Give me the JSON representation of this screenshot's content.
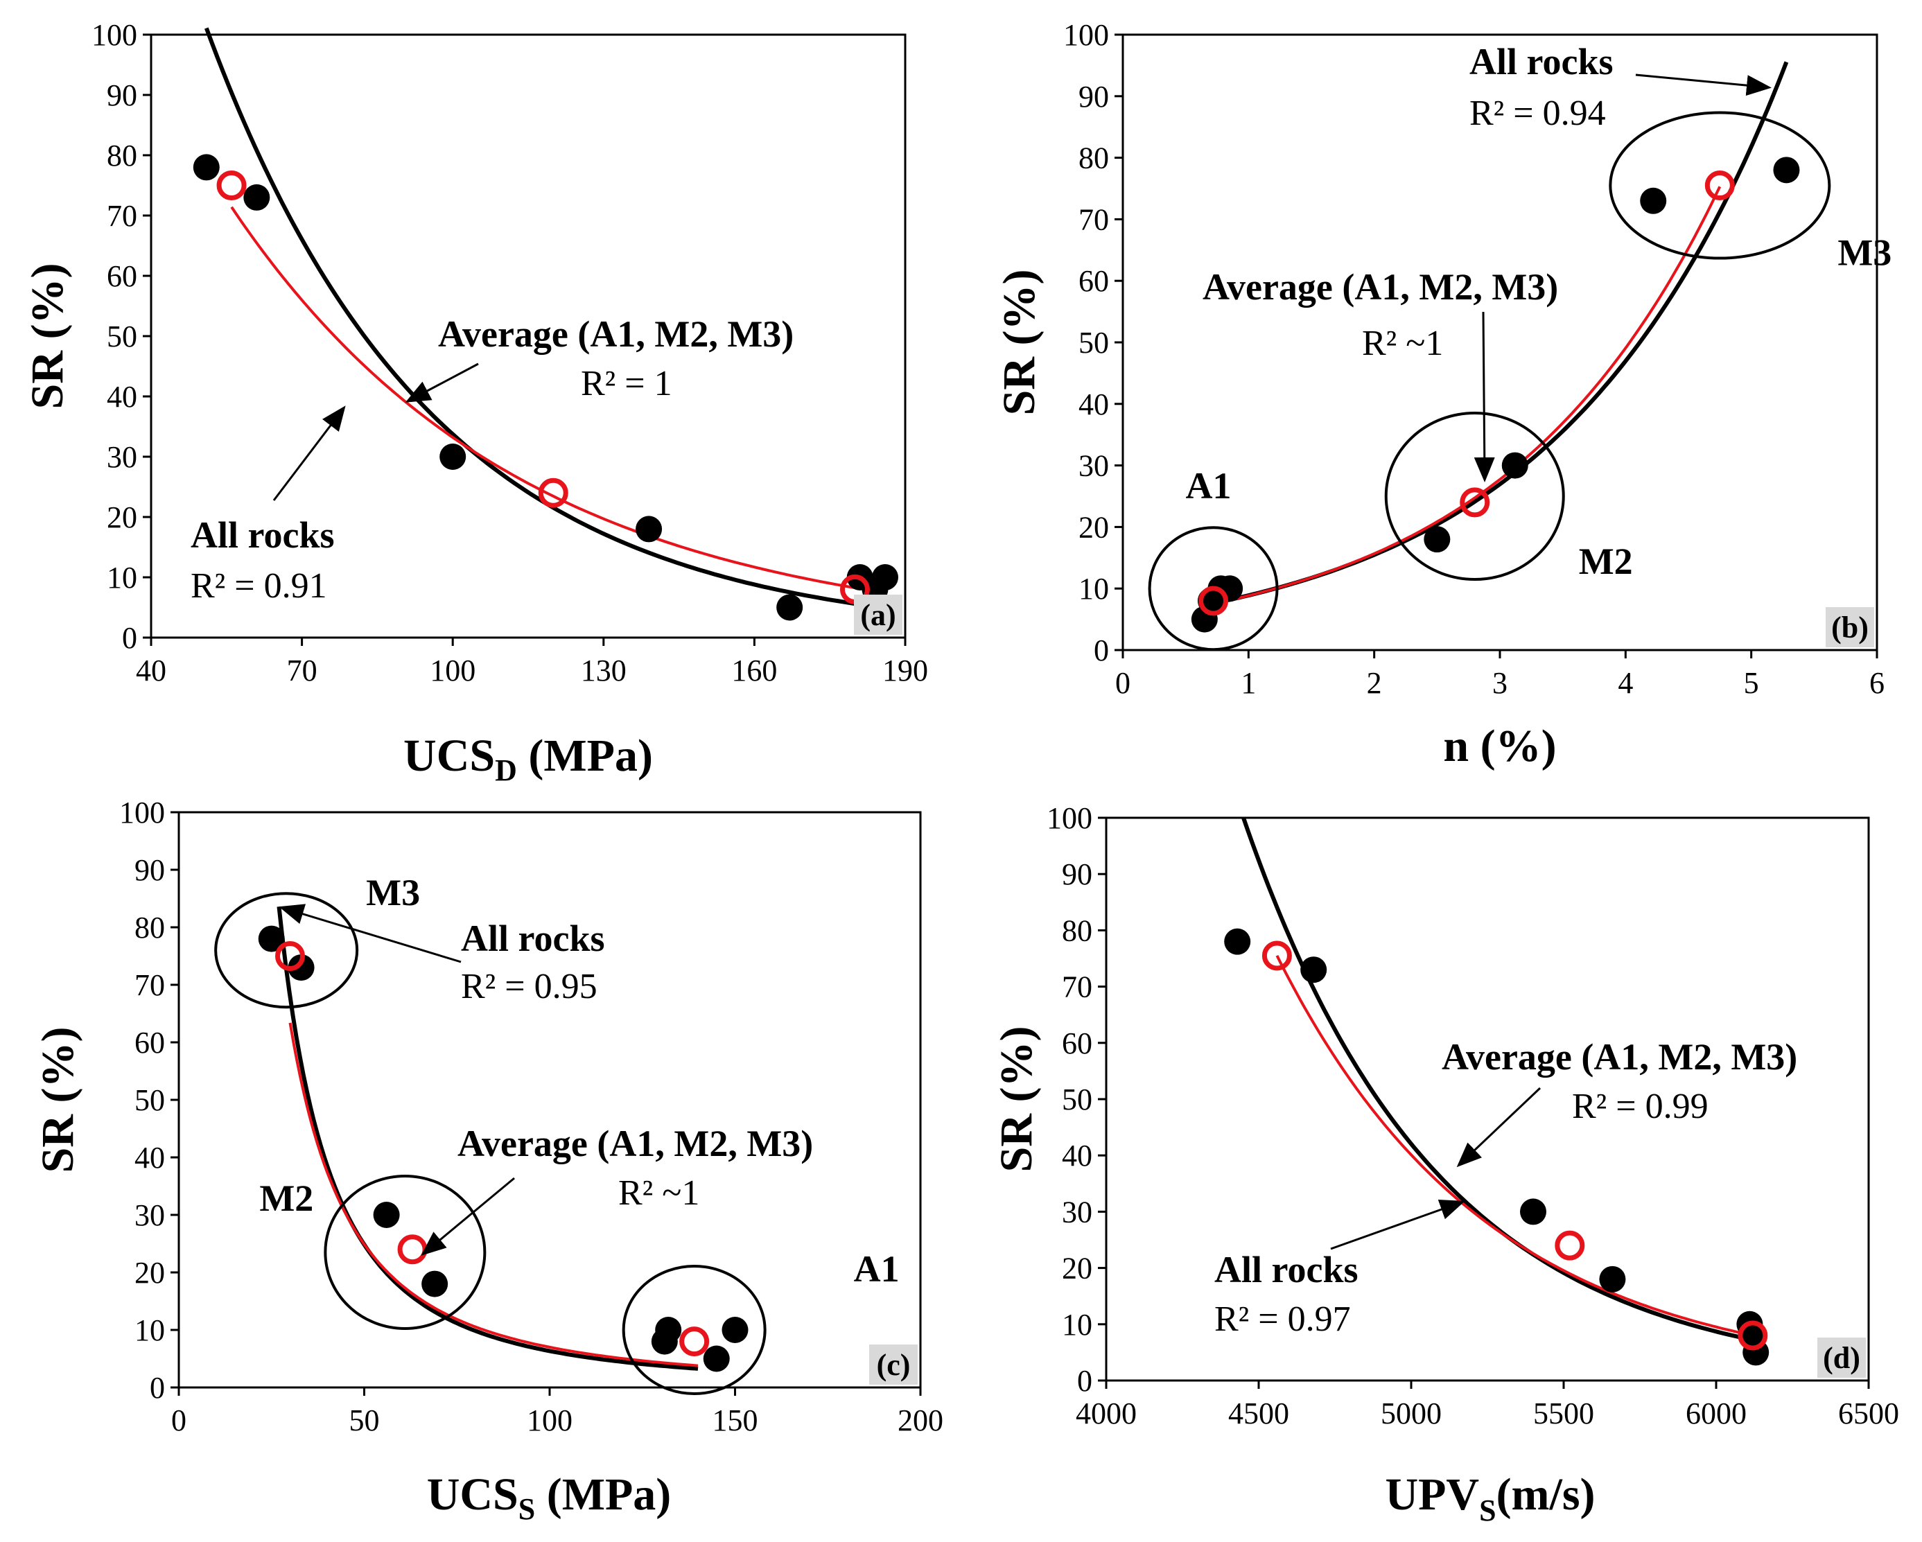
{
  "chart_data": [
    {
      "id": "a",
      "type": "scatter",
      "panel_label": "(a)",
      "xlabel": "UCS",
      "xlabel_sub": "D",
      "xlabel_unit": " (MPa)",
      "ylabel": "SR (%)",
      "xlim": [
        40,
        190
      ],
      "ylim": [
        0,
        100
      ],
      "xticks": [
        40,
        70,
        100,
        130,
        160,
        190
      ],
      "yticks": [
        0,
        10,
        20,
        30,
        40,
        50,
        60,
        70,
        80,
        90,
        100
      ],
      "points": [
        {
          "x": 51,
          "y": 78
        },
        {
          "x": 61,
          "y": 73
        },
        {
          "x": 100,
          "y": 30
        },
        {
          "x": 139,
          "y": 18
        },
        {
          "x": 167,
          "y": 5
        },
        {
          "x": 181,
          "y": 10
        },
        {
          "x": 184,
          "y": 8
        },
        {
          "x": 186,
          "y": 10
        }
      ],
      "average_points": [
        {
          "x": 56,
          "y": 75
        },
        {
          "x": 120,
          "y": 24
        },
        {
          "x": 180,
          "y": 8
        }
      ],
      "fit_all": {
        "model": "exp",
        "a": 316.8,
        "b": -0.0224,
        "xrange": [
          51,
          180
        ]
      },
      "fit_avg": {
        "model": "exp",
        "a": 189.2,
        "b": -0.0174,
        "xrange": [
          56,
          180
        ]
      },
      "annotations": [
        {
          "label": "Average (A1, M2, M3)",
          "r2": "R² = 1"
        },
        {
          "label": "All rocks",
          "r2": "R² = 0.91"
        }
      ]
    },
    {
      "id": "b",
      "type": "scatter",
      "panel_label": "(b)",
      "xlabel": "n (%)",
      "xlabel_sub": "",
      "xlabel_unit": "",
      "ylabel": "SR (%)",
      "xlim": [
        0,
        6
      ],
      "ylim": [
        0,
        100
      ],
      "xticks": [
        0,
        1,
        2,
        3,
        4,
        5,
        6
      ],
      "yticks": [
        0,
        10,
        20,
        30,
        40,
        50,
        60,
        70,
        80,
        90,
        100
      ],
      "points": [
        {
          "x": 0.65,
          "y": 5
        },
        {
          "x": 0.7,
          "y": 8
        },
        {
          "x": 0.78,
          "y": 10
        },
        {
          "x": 0.85,
          "y": 10
        },
        {
          "x": 2.5,
          "y": 18
        },
        {
          "x": 3.12,
          "y": 30
        },
        {
          "x": 4.22,
          "y": 73
        },
        {
          "x": 5.28,
          "y": 78
        }
      ],
      "average_points": [
        {
          "x": 0.72,
          "y": 8
        },
        {
          "x": 2.8,
          "y": 24
        },
        {
          "x": 4.75,
          "y": 75.5
        }
      ],
      "fit_all": {
        "model": "exp",
        "a": 5.1,
        "b": 0.555,
        "xrange": [
          0.7,
          5.28
        ]
      },
      "fit_avg": {
        "model": "exp",
        "a": 5.0,
        "b": 0.571,
        "xrange": [
          0.72,
          4.75
        ]
      },
      "groups": [
        {
          "label": "A1",
          "cx": 0.72,
          "cy": 10
        },
        {
          "label": "M2",
          "cx": 2.8,
          "cy": 25
        },
        {
          "label": "M3",
          "cx": 4.75,
          "cy": 75.5
        }
      ],
      "annotations": [
        {
          "label": "All rocks",
          "r2": "R² = 0.94"
        },
        {
          "label": "Average (A1, M2, M3)",
          "r2": "R² ~1"
        }
      ]
    },
    {
      "id": "c",
      "type": "scatter",
      "panel_label": "(c)",
      "xlabel": "UCS",
      "xlabel_sub": "S",
      "xlabel_unit": " (MPa)",
      "ylabel": "SR (%)",
      "xlim": [
        0,
        200
      ],
      "ylim": [
        0,
        100
      ],
      "xticks": [
        0,
        50,
        100,
        150,
        200
      ],
      "yticks": [
        0,
        10,
        20,
        30,
        40,
        50,
        60,
        70,
        80,
        90,
        100
      ],
      "points": [
        {
          "x": 25,
          "y": 78
        },
        {
          "x": 33,
          "y": 73
        },
        {
          "x": 56,
          "y": 30
        },
        {
          "x": 69,
          "y": 18
        },
        {
          "x": 131,
          "y": 8
        },
        {
          "x": 132,
          "y": 10
        },
        {
          "x": 145,
          "y": 5
        },
        {
          "x": 150,
          "y": 10
        }
      ],
      "average_points": [
        {
          "x": 30,
          "y": 75
        },
        {
          "x": 63,
          "y": 24
        },
        {
          "x": 139,
          "y": 8
        }
      ],
      "fit_all": {
        "model": "power",
        "a": 55200,
        "b": -1.97,
        "xrange": [
          27,
          140
        ]
      },
      "fit_avg": {
        "model": "power",
        "a": 32000,
        "b": -1.83,
        "xrange": [
          30,
          140
        ]
      },
      "groups": [
        {
          "label": "M3",
          "cx": 29,
          "cy": 76
        },
        {
          "label": "M2",
          "cx": 61,
          "cy": 23.5
        },
        {
          "label": "A1",
          "cx": 139,
          "cy": 10
        }
      ],
      "annotations": [
        {
          "label": "All rocks",
          "r2": "R² = 0.95"
        },
        {
          "label": "Average (A1, M2, M3)",
          "r2": "R² ~1"
        }
      ]
    },
    {
      "id": "d",
      "type": "scatter",
      "panel_label": "(d)",
      "xlabel": "UPV",
      "xlabel_sub": "S",
      "xlabel_unit": "(m/s)",
      "ylabel": "SR (%)",
      "xlim": [
        4000,
        6500
      ],
      "ylim": [
        0,
        100
      ],
      "xticks": [
        4000,
        4500,
        5000,
        5500,
        6000,
        6500
      ],
      "yticks": [
        0,
        10,
        20,
        30,
        40,
        50,
        60,
        70,
        80,
        90,
        100
      ],
      "points": [
        {
          "x": 4430,
          "y": 78
        },
        {
          "x": 4680,
          "y": 73
        },
        {
          "x": 5400,
          "y": 30
        },
        {
          "x": 5660,
          "y": 18
        },
        {
          "x": 6110,
          "y": 10
        },
        {
          "x": 6120,
          "y": 8
        },
        {
          "x": 6130,
          "y": 5
        }
      ],
      "average_points": [
        {
          "x": 4560,
          "y": 75.5
        },
        {
          "x": 5520,
          "y": 24
        },
        {
          "x": 6120,
          "y": 8
        }
      ],
      "fit_all": {
        "model": "exp",
        "a": 100,
        "b": -0.001575,
        "xrange": [
          4450,
          6120
        ],
        "xshift": 4450
      },
      "fit_avg": {
        "model": "exp",
        "a": 75.5,
        "b": -0.001438,
        "xrange": [
          4560,
          6120
        ],
        "xshift": 4560
      },
      "annotations": [
        {
          "label": "Average (A1, M2, M3)",
          "r2": "R² = 0.99"
        },
        {
          "label": "All rocks",
          "r2": "R² = 0.97"
        }
      ]
    }
  ]
}
